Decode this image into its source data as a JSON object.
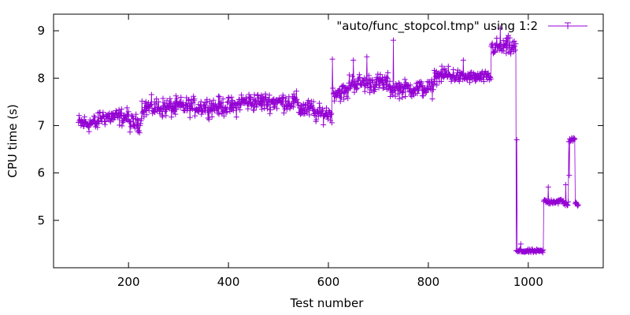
{
  "chart_data": {
    "type": "line",
    "xlabel": "Test number",
    "ylabel": "CPU time (s)",
    "xlim": [
      50,
      1150
    ],
    "ylim": [
      4.0,
      9.35
    ],
    "xticks": [
      200,
      400,
      600,
      800,
      1000
    ],
    "yticks": [
      5,
      6,
      7,
      8,
      9
    ],
    "grid": false,
    "legend_position": "top-right",
    "series": [
      {
        "name": "\"auto/func_stopcol.tmp\" using 1:2",
        "color": "#9400d3",
        "marker": "plus",
        "segments": [
          {
            "x_start": 100,
            "x_end": 140,
            "level": 7.05,
            "noise": 0.16
          },
          {
            "x_start": 141,
            "x_end": 200,
            "level": 7.18,
            "noise": 0.15
          },
          {
            "x_start": 201,
            "x_end": 225,
            "level": 7.05,
            "noise": 0.15
          },
          {
            "x_start": 226,
            "x_end": 300,
            "level": 7.38,
            "noise": 0.17
          },
          {
            "x_start": 301,
            "x_end": 420,
            "level": 7.4,
            "noise": 0.16
          },
          {
            "x_start": 421,
            "x_end": 540,
            "level": 7.5,
            "noise": 0.16
          },
          {
            "x_start": 541,
            "x_end": 570,
            "level": 7.35,
            "noise": 0.16
          },
          {
            "x_start": 571,
            "x_end": 608,
            "level": 7.25,
            "noise": 0.15
          },
          {
            "x_start": 609,
            "x_end": 640,
            "level": 7.7,
            "noise": 0.15
          },
          {
            "x_start": 641,
            "x_end": 720,
            "level": 7.9,
            "noise": 0.16
          },
          {
            "x_start": 721,
            "x_end": 810,
            "level": 7.78,
            "noise": 0.15
          },
          {
            "x_start": 811,
            "x_end": 860,
            "level": 8.05,
            "noise": 0.13
          },
          {
            "x_start": 861,
            "x_end": 925,
            "level": 8.02,
            "noise": 0.1
          },
          {
            "x_start": 926,
            "x_end": 975,
            "level": 8.65,
            "noise": 0.15
          },
          {
            "x_start": 976,
            "x_end": 1030,
            "level": 4.35,
            "noise": 0.03
          },
          {
            "x_start": 1031,
            "x_end": 1070,
            "level": 5.4,
            "noise": 0.05
          },
          {
            "x_start": 1071,
            "x_end": 1080,
            "level": 5.35,
            "noise": 0.04
          },
          {
            "x_start": 1081,
            "x_end": 1093,
            "level": 6.7,
            "noise": 0.04
          },
          {
            "x_start": 1094,
            "x_end": 1100,
            "level": 5.35,
            "noise": 0.04
          }
        ],
        "spikes": [
          {
            "x": 608,
            "y": 8.4
          },
          {
            "x": 650,
            "y": 8.38
          },
          {
            "x": 677,
            "y": 8.45
          },
          {
            "x": 730,
            "y": 8.8
          },
          {
            "x": 833,
            "y": 8.2
          },
          {
            "x": 840,
            "y": 8.25
          },
          {
            "x": 870,
            "y": 8.38
          },
          {
            "x": 944,
            "y": 9.05
          },
          {
            "x": 960,
            "y": 8.9
          },
          {
            "x": 977,
            "y": 6.7
          },
          {
            "x": 985,
            "y": 4.5
          },
          {
            "x": 1040,
            "y": 5.7
          },
          {
            "x": 1075,
            "y": 5.75
          },
          {
            "x": 1082,
            "y": 5.95
          }
        ]
      }
    ]
  }
}
